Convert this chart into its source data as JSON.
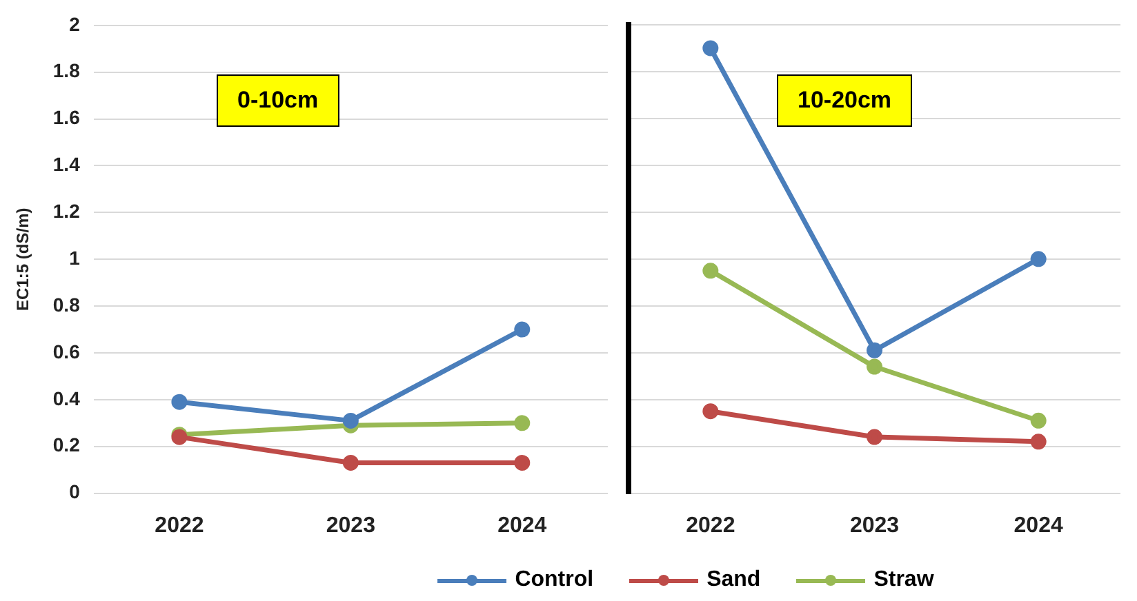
{
  "chart_data": [
    {
      "type": "line",
      "ylabel": "EC1:5 (dS/m)",
      "categories": [
        "2022",
        "2023",
        "2024"
      ],
      "series": [
        {
          "name": "Control",
          "color": "#4a7ebb",
          "values": [
            0.39,
            0.31,
            0.7
          ]
        },
        {
          "name": "Sand",
          "color": "#be4b48",
          "values": [
            0.24,
            0.13,
            0.13
          ]
        },
        {
          "name": "Straw",
          "color": "#98b954",
          "values": [
            0.25,
            0.29,
            0.3
          ]
        }
      ],
      "ylim": [
        0,
        2
      ],
      "yticks": [
        0,
        0.2,
        0.4,
        0.6,
        0.8,
        1,
        1.2,
        1.4,
        1.6,
        1.8,
        2
      ],
      "grid": "y",
      "marker": "circle",
      "legend": "bottom",
      "annotations": [
        "0-10cm"
      ]
    },
    {
      "type": "line",
      "categories": [
        "2022",
        "2023",
        "2024"
      ],
      "series": [
        {
          "color": "#4a7ebb",
          "values": [
            1.9,
            0.61,
            1.0
          ]
        },
        {
          "color": "#be4b48",
          "values": [
            0.35,
            0.24,
            0.22
          ]
        },
        {
          "color": "#98b954",
          "values": [
            0.95,
            0.54,
            0.31
          ]
        }
      ],
      "ylim": [
        0,
        2
      ],
      "yticks": [
        0,
        0.2,
        0.4,
        0.6,
        0.8,
        1,
        1.2,
        1.4,
        1.6,
        1.8,
        2
      ],
      "grid": "y",
      "marker": "circle",
      "tick_labels": "x",
      "annotations": [
        "10-20cm"
      ]
    }
  ]
}
